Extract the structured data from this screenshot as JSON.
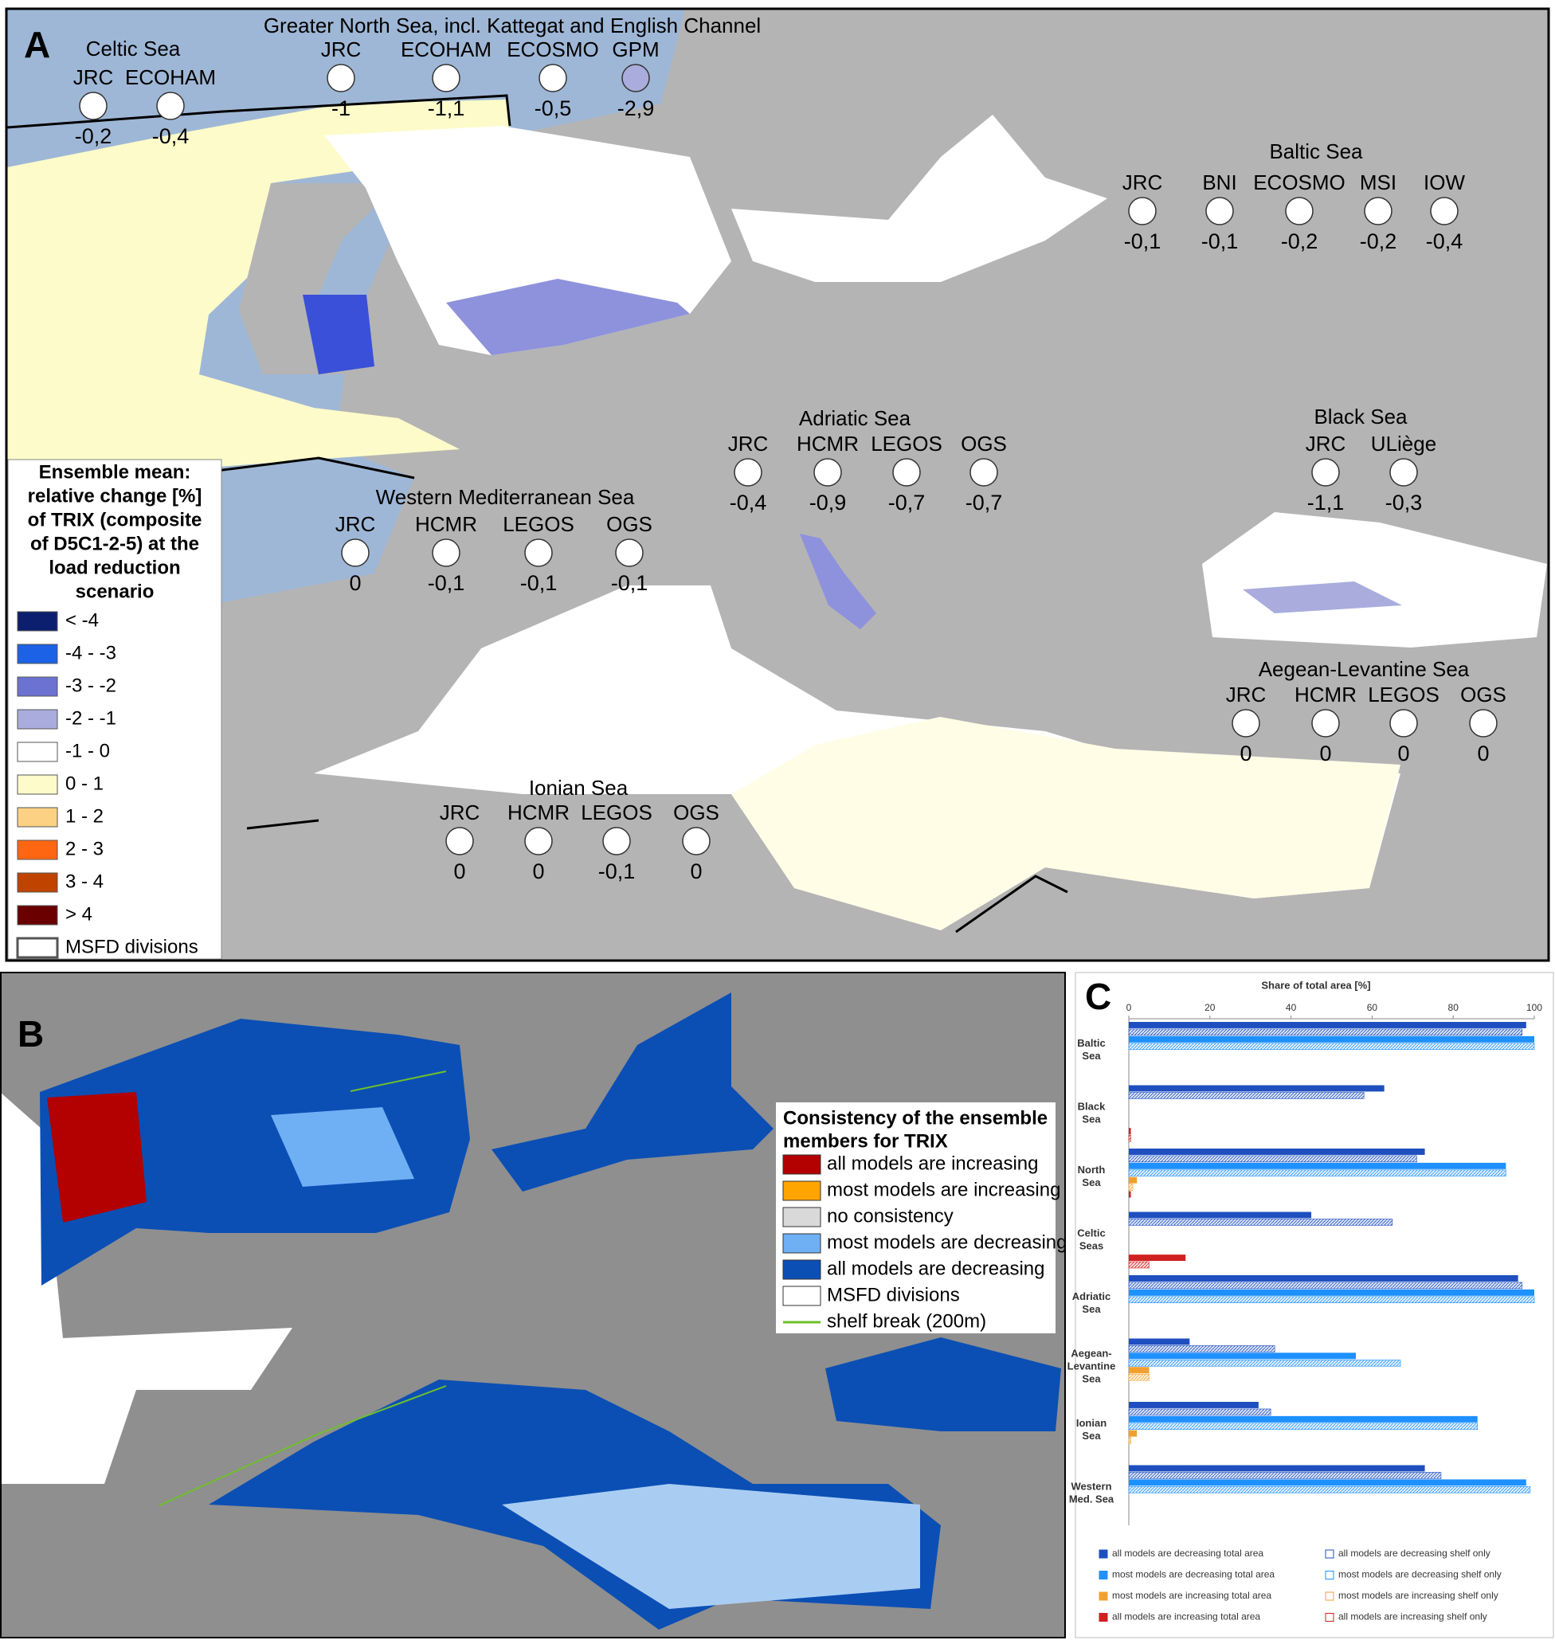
{
  "panel_a": {
    "label": "A",
    "regions": [
      {
        "title": "Celtic Sea",
        "models": [
          {
            "name": "JRC",
            "value": "-0,2",
            "color": "#ffffff"
          },
          {
            "name": "ECOHAM",
            "value": "-0,4",
            "color": "#ffffff"
          }
        ]
      },
      {
        "title": "Greater North Sea, incl. Kattegat and English Channel",
        "models": [
          {
            "name": "JRC",
            "value": "-1",
            "color": "#ffffff"
          },
          {
            "name": "ECOHAM",
            "value": "-1,1",
            "color": "#ffffff"
          },
          {
            "name": "ECOSMO",
            "value": "-0,5",
            "color": "#ffffff"
          },
          {
            "name": "GPM",
            "value": "-2,9",
            "color": "#a9acdc"
          }
        ]
      },
      {
        "title": "Baltic Sea",
        "models": [
          {
            "name": "JRC",
            "value": "-0,1",
            "color": "#ffffff"
          },
          {
            "name": "BNI",
            "value": "-0,1",
            "color": "#ffffff"
          },
          {
            "name": "ECOSMO",
            "value": "-0,2",
            "color": "#ffffff"
          },
          {
            "name": "MSI",
            "value": "-0,2",
            "color": "#ffffff"
          },
          {
            "name": "IOW",
            "value": "-0,4",
            "color": "#ffffff"
          }
        ]
      },
      {
        "title": "Adriatic Sea",
        "models": [
          {
            "name": "JRC",
            "value": "-0,4",
            "color": "#ffffff"
          },
          {
            "name": "HCMR",
            "value": "-0,9",
            "color": "#ffffff"
          },
          {
            "name": "LEGOS",
            "value": "-0,7",
            "color": "#ffffff"
          },
          {
            "name": "OGS",
            "value": "-0,7",
            "color": "#ffffff"
          }
        ]
      },
      {
        "title": "Black Sea",
        "models": [
          {
            "name": "JRC",
            "value": "-1,1",
            "color": "#ffffff"
          },
          {
            "name": "ULiège",
            "value": "-0,3",
            "color": "#ffffff"
          }
        ]
      },
      {
        "title": "Western Mediterranean Sea",
        "models": [
          {
            "name": "JRC",
            "value": "0",
            "color": "#ffffff"
          },
          {
            "name": "HCMR",
            "value": "-0,1",
            "color": "#ffffff"
          },
          {
            "name": "LEGOS",
            "value": "-0,1",
            "color": "#ffffff"
          },
          {
            "name": "OGS",
            "value": "-0,1",
            "color": "#ffffff"
          }
        ]
      },
      {
        "title": "Aegean-Levantine Sea",
        "models": [
          {
            "name": "JRC",
            "value": "0",
            "color": "#ffffff"
          },
          {
            "name": "HCMR",
            "value": "0",
            "color": "#ffffff"
          },
          {
            "name": "LEGOS",
            "value": "0",
            "color": "#ffffff"
          },
          {
            "name": "OGS",
            "value": "0",
            "color": "#ffffff"
          }
        ]
      },
      {
        "title": "Ionian Sea",
        "models": [
          {
            "name": "JRC",
            "value": "0",
            "color": "#ffffff"
          },
          {
            "name": "HCMR",
            "value": "0",
            "color": "#ffffff"
          },
          {
            "name": "LEGOS",
            "value": "-0,1",
            "color": "#ffffff"
          },
          {
            "name": "OGS",
            "value": "0",
            "color": "#ffffff"
          }
        ]
      }
    ],
    "legend": {
      "title": [
        "Ensemble mean:",
        "relative change [%]",
        "of TRIX (composite",
        "of D5C1-2-5) at the",
        "load reduction",
        "scenario"
      ],
      "items": [
        {
          "label": "< -4",
          "color": "#0b1f6e"
        },
        {
          "label": "-4 - -3",
          "color": "#1c62e6"
        },
        {
          "label": "-3 - -2",
          "color": "#6b72d1"
        },
        {
          "label": "-2 - -1",
          "color": "#a9acdc"
        },
        {
          "label": "-1 - 0",
          "color": "#ffffff"
        },
        {
          "label": "0 - 1",
          "color": "#fdfbc9"
        },
        {
          "label": "1 - 2",
          "color": "#fcd183"
        },
        {
          "label": "2 - 3",
          "color": "#ff6611"
        },
        {
          "label": "3 - 4",
          "color": "#c04400"
        },
        {
          "label": "> 4",
          "color": "#6b0000"
        },
        {
          "label": "MSFD divisions",
          "color": "#ffffff"
        }
      ]
    }
  },
  "panel_b": {
    "label": "B",
    "legend": {
      "title": [
        "Consistency of the ensemble",
        "members for TRIX"
      ],
      "items": [
        {
          "label": "all models are increasing",
          "color": "#b30000",
          "symbol": "box"
        },
        {
          "label": "most models are increasing",
          "color": "#ffa500",
          "symbol": "box"
        },
        {
          "label": "no consistency",
          "color": "#d9d9d9",
          "symbol": "box"
        },
        {
          "label": "most models are decreasing",
          "color": "#6fb0f5",
          "symbol": "box"
        },
        {
          "label": "all models are decreasing",
          "color": "#0b4fb5",
          "symbol": "box"
        },
        {
          "label": "MSFD divisions",
          "color": "#ffffff",
          "symbol": "box"
        },
        {
          "label": "shelf break (200m)",
          "color": "#6fbf2a",
          "symbol": "line"
        }
      ]
    }
  },
  "chart_data": {
    "type": "bar",
    "orientation": "horizontal",
    "panel_label": "C",
    "x_label": "Share of total area [%]",
    "categories": [
      [
        "Baltic",
        "Sea"
      ],
      [
        "Black",
        "Sea"
      ],
      [
        "North",
        "Sea"
      ],
      [
        "Celtic",
        "Seas"
      ],
      [
        "Adriatic",
        "Sea"
      ],
      [
        "Aegean-",
        "Levantine",
        "Sea"
      ],
      [
        "Ionian",
        "Sea"
      ],
      [
        "Western",
        "Med. Sea"
      ]
    ],
    "series": [
      {
        "name": "all models are decreasing total area",
        "color": "#1f4fbf",
        "style": "solid",
        "values": [
          98,
          63,
          73,
          45,
          96,
          15,
          32,
          73
        ]
      },
      {
        "name": "all models are decreasing shelf only",
        "color": "#1f4fbf",
        "style": "hatched",
        "values": [
          97,
          58,
          71,
          65,
          97,
          36,
          35,
          77
        ]
      },
      {
        "name": "most models are decreasing total area",
        "color": "#1e90ff",
        "style": "solid",
        "values": [
          100,
          0,
          93,
          0,
          100,
          56,
          86,
          98
        ]
      },
      {
        "name": "most models are decreasing shelf only",
        "color": "#1e90ff",
        "style": "hatched",
        "values": [
          100,
          0,
          93,
          0,
          100,
          67,
          86,
          99
        ]
      },
      {
        "name": "most models are increasing total area",
        "color": "#f0a030",
        "style": "solid",
        "values": [
          0,
          0,
          2,
          0,
          0,
          5,
          2,
          0
        ]
      },
      {
        "name": "most models are increasing shelf only",
        "color": "#f0a030",
        "style": "hatched",
        "values": [
          0,
          0,
          1,
          0,
          0,
          5,
          0.5,
          0
        ]
      },
      {
        "name": "all models are increasing total area",
        "color": "#d02020",
        "style": "solid",
        "values": [
          0,
          0.5,
          0.5,
          14,
          0,
          0,
          0,
          0
        ]
      },
      {
        "name": "all models are increasing shelf only",
        "color": "#d02020",
        "style": "hatched",
        "values": [
          0,
          0.5,
          0,
          5,
          0,
          0,
          0,
          0
        ]
      }
    ],
    "xlim": [
      0,
      100
    ],
    "xticks": [
      0,
      20,
      40,
      60,
      80,
      100
    ]
  }
}
